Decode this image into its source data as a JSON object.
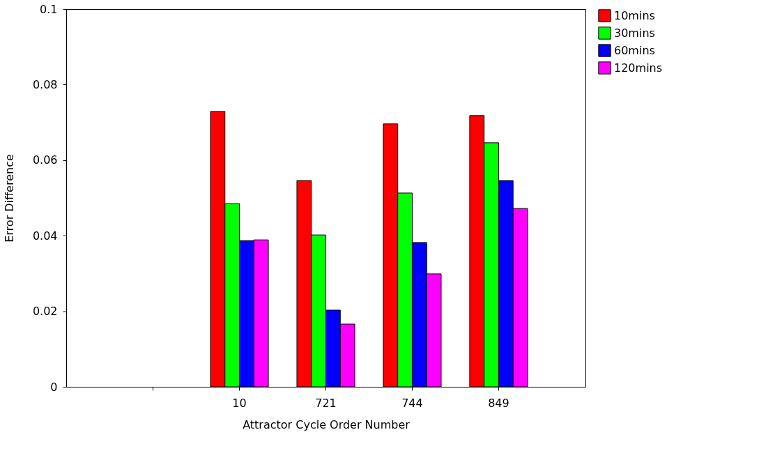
{
  "chart_data": {
    "type": "bar",
    "xlabel": "Attractor Cycle Order Number",
    "ylabel": "Error Difference",
    "categories": [
      null,
      "10",
      "721",
      "744",
      "849"
    ],
    "series": [
      {
        "name": "10mins",
        "color": "#ff0000",
        "values": [
          null,
          0.0729,
          0.0546,
          0.0696,
          0.0718
        ]
      },
      {
        "name": "30mins",
        "color": "#00ff00",
        "values": [
          null,
          0.0485,
          0.0402,
          0.0513,
          0.0646
        ]
      },
      {
        "name": "60mins",
        "color": "#0000ff",
        "values": [
          null,
          0.0387,
          0.0203,
          0.0382,
          0.0546
        ]
      },
      {
        "name": "120mins",
        "color": "#ff00ff",
        "values": [
          null,
          0.0389,
          0.0166,
          0.0299,
          0.0472
        ]
      }
    ],
    "ylim": [
      0,
      0.1
    ],
    "yticks": [
      0,
      0.02,
      0.04,
      0.06,
      0.08,
      0.1
    ],
    "grid": false,
    "legend": "top right"
  }
}
